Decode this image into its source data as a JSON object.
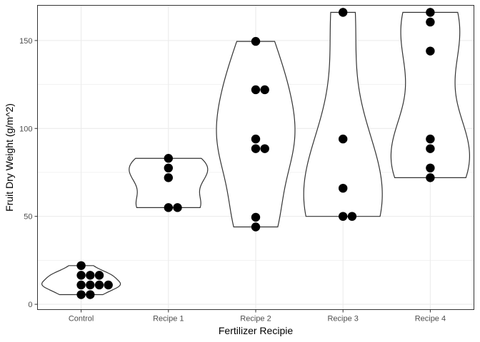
{
  "chart_data": {
    "type": "violin+dotplot",
    "xlabel": "Fertilizer Recipie",
    "ylabel": "Fruit Dry Weight (g/m^2)",
    "ylim": [
      -3,
      170
    ],
    "yticks": [
      0,
      50,
      100,
      150
    ],
    "categories": [
      "Control",
      "Recipe 1",
      "Recipe 2",
      "Recipe 3",
      "Recipe 4"
    ],
    "groups": [
      {
        "name": "Control",
        "values": [
          5.5,
          5.5,
          11,
          11,
          11,
          11,
          16.5,
          16.5,
          16.5,
          22
        ]
      },
      {
        "name": "Recipe 1",
        "values": [
          55,
          55,
          72,
          77.5,
          83
        ]
      },
      {
        "name": "Recipe 2",
        "values": [
          44,
          49.5,
          88.5,
          88.5,
          94,
          122,
          122,
          149.5
        ]
      },
      {
        "name": "Recipe 3",
        "values": [
          50,
          50,
          66,
          94,
          166
        ]
      },
      {
        "name": "Recipe 4",
        "values": [
          72,
          77.5,
          88.5,
          94,
          144,
          160.5,
          166
        ]
      }
    ],
    "grid": true,
    "colors": {
      "points": "#000000",
      "violin_outline": "#333333",
      "grid": "#ebebeb",
      "panel_border": "#333333"
    }
  }
}
